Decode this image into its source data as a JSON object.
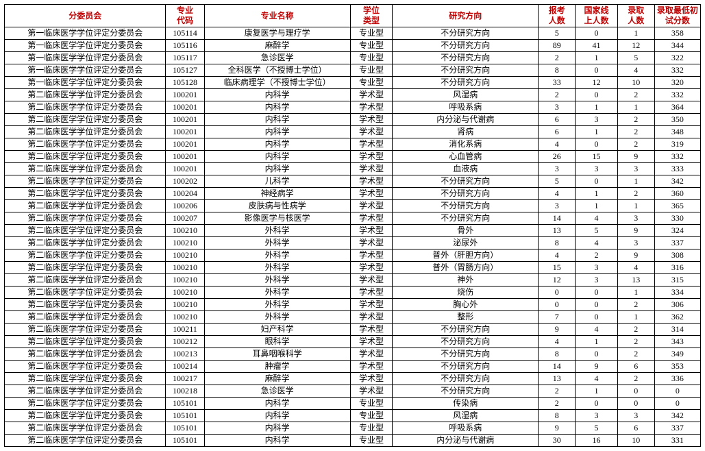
{
  "columns": [
    "分委员会",
    "专业\n代码",
    "专业名称",
    "学位\n类型",
    "研究方向",
    "报考\n人数",
    "国家线\n上人数",
    "录取\n人数",
    "录取最低初\n试分数"
  ],
  "header_color": "#c00000",
  "rows": [
    [
      "第一临床医学学位评定分委员会",
      "105114",
      "康复医学与理疗学",
      "专业型",
      "不分研究方向",
      "5",
      "0",
      "1",
      "358"
    ],
    [
      "第一临床医学学位评定分委员会",
      "105116",
      "麻醉学",
      "专业型",
      "不分研究方向",
      "89",
      "41",
      "12",
      "344"
    ],
    [
      "第一临床医学学位评定分委员会",
      "105117",
      "急诊医学",
      "专业型",
      "不分研究方向",
      "2",
      "1",
      "5",
      "322"
    ],
    [
      "第一临床医学学位评定分委员会",
      "105127",
      "全科医学（不授博士学位）",
      "专业型",
      "不分研究方向",
      "8",
      "0",
      "4",
      "332"
    ],
    [
      "第一临床医学学位评定分委员会",
      "105128",
      "临床病理学（不授博士学位）",
      "专业型",
      "不分研究方向",
      "33",
      "12",
      "10",
      "320"
    ],
    [
      "第二临床医学学位评定分委员会",
      "100201",
      "内科学",
      "学术型",
      "风湿病",
      "2",
      "0",
      "2",
      "332"
    ],
    [
      "第二临床医学学位评定分委员会",
      "100201",
      "内科学",
      "学术型",
      "呼吸系病",
      "3",
      "1",
      "1",
      "364"
    ],
    [
      "第二临床医学学位评定分委员会",
      "100201",
      "内科学",
      "学术型",
      "内分泌与代谢病",
      "6",
      "3",
      "2",
      "350"
    ],
    [
      "第二临床医学学位评定分委员会",
      "100201",
      "内科学",
      "学术型",
      "肾病",
      "6",
      "1",
      "2",
      "348"
    ],
    [
      "第二临床医学学位评定分委员会",
      "100201",
      "内科学",
      "学术型",
      "消化系病",
      "4",
      "0",
      "2",
      "319"
    ],
    [
      "第二临床医学学位评定分委员会",
      "100201",
      "内科学",
      "学术型",
      "心血管病",
      "26",
      "15",
      "9",
      "332"
    ],
    [
      "第二临床医学学位评定分委员会",
      "100201",
      "内科学",
      "学术型",
      "血液病",
      "3",
      "3",
      "3",
      "333"
    ],
    [
      "第二临床医学学位评定分委员会",
      "100202",
      "儿科学",
      "学术型",
      "不分研究方向",
      "5",
      "0",
      "1",
      "342"
    ],
    [
      "第二临床医学学位评定分委员会",
      "100204",
      "神经病学",
      "学术型",
      "不分研究方向",
      "4",
      "1",
      "2",
      "360"
    ],
    [
      "第二临床医学学位评定分委员会",
      "100206",
      "皮肤病与性病学",
      "学术型",
      "不分研究方向",
      "3",
      "1",
      "1",
      "365"
    ],
    [
      "第二临床医学学位评定分委员会",
      "100207",
      "影像医学与核医学",
      "学术型",
      "不分研究方向",
      "14",
      "4",
      "3",
      "330"
    ],
    [
      "第二临床医学学位评定分委员会",
      "100210",
      "外科学",
      "学术型",
      "骨外",
      "13",
      "5",
      "9",
      "324"
    ],
    [
      "第二临床医学学位评定分委员会",
      "100210",
      "外科学",
      "学术型",
      "泌尿外",
      "8",
      "4",
      "3",
      "337"
    ],
    [
      "第二临床医学学位评定分委员会",
      "100210",
      "外科学",
      "学术型",
      "普外（肝胆方向）",
      "4",
      "2",
      "9",
      "308"
    ],
    [
      "第二临床医学学位评定分委员会",
      "100210",
      "外科学",
      "学术型",
      "普外（胃肠方向）",
      "15",
      "3",
      "4",
      "316"
    ],
    [
      "第二临床医学学位评定分委员会",
      "100210",
      "外科学",
      "学术型",
      "神外",
      "12",
      "3",
      "13",
      "315"
    ],
    [
      "第二临床医学学位评定分委员会",
      "100210",
      "外科学",
      "学术型",
      "烧伤",
      "0",
      "0",
      "1",
      "334"
    ],
    [
      "第二临床医学学位评定分委员会",
      "100210",
      "外科学",
      "学术型",
      "胸心外",
      "0",
      "0",
      "2",
      "306"
    ],
    [
      "第二临床医学学位评定分委员会",
      "100210",
      "外科学",
      "学术型",
      "整形",
      "7",
      "0",
      "1",
      "362"
    ],
    [
      "第二临床医学学位评定分委员会",
      "100211",
      "妇产科学",
      "学术型",
      "不分研究方向",
      "9",
      "4",
      "2",
      "314"
    ],
    [
      "第二临床医学学位评定分委员会",
      "100212",
      "眼科学",
      "学术型",
      "不分研究方向",
      "4",
      "1",
      "2",
      "343"
    ],
    [
      "第二临床医学学位评定分委员会",
      "100213",
      "耳鼻咽喉科学",
      "学术型",
      "不分研究方向",
      "8",
      "0",
      "2",
      "349"
    ],
    [
      "第二临床医学学位评定分委员会",
      "100214",
      "肿瘤学",
      "学术型",
      "不分研究方向",
      "14",
      "9",
      "6",
      "353"
    ],
    [
      "第二临床医学学位评定分委员会",
      "100217",
      "麻醉学",
      "学术型",
      "不分研究方向",
      "13",
      "4",
      "2",
      "336"
    ],
    [
      "第二临床医学学位评定分委员会",
      "100218",
      "急诊医学",
      "学术型",
      "不分研究方向",
      "2",
      "1",
      "0",
      "0"
    ],
    [
      "第二临床医学学位评定分委员会",
      "105101",
      "内科学",
      "专业型",
      "传染病",
      "2",
      "0",
      "0",
      "0"
    ],
    [
      "第二临床医学学位评定分委员会",
      "105101",
      "内科学",
      "专业型",
      "风湿病",
      "8",
      "3",
      "3",
      "342"
    ],
    [
      "第二临床医学学位评定分委员会",
      "105101",
      "内科学",
      "专业型",
      "呼吸系病",
      "9",
      "5",
      "6",
      "337"
    ],
    [
      "第二临床医学学位评定分委员会",
      "105101",
      "内科学",
      "专业型",
      "内分泌与代谢病",
      "30",
      "16",
      "10",
      "331"
    ]
  ]
}
